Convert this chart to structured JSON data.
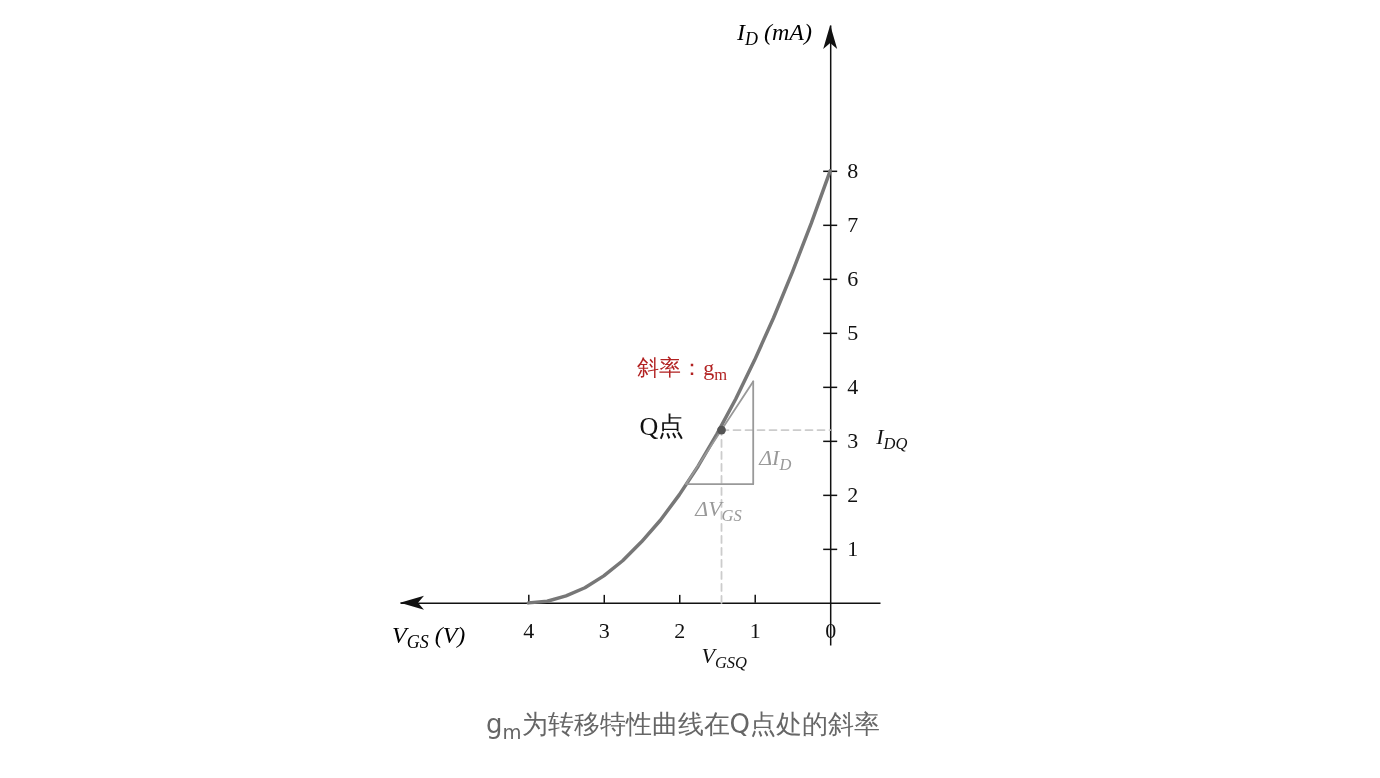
{
  "chart_data": {
    "type": "line",
    "xlabel": "V$_{GS}$ (V)",
    "ylabel": "I$_{D}$ (mA)",
    "xlim": [
      5.7,
      -0.66
    ],
    "ylim": [
      -0.78,
      10.7
    ],
    "xticks": [
      4,
      3,
      2,
      1,
      {
        "value": 0,
        "label": "0"
      }
    ],
    "yticks": [
      1,
      2,
      3,
      4,
      5,
      6,
      7,
      8
    ],
    "grid": false,
    "series": [
      {
        "color": "#777777",
        "x": [
          4,
          3.75,
          3.5,
          3.25,
          3,
          2.75,
          2.5,
          2.25,
          2,
          1.75,
          1.5,
          1.25,
          1,
          0.75,
          0.5,
          0.25,
          0
        ],
        "values": [
          0,
          0.03,
          0.13,
          0.28,
          0.5,
          0.78,
          1.13,
          1.53,
          2,
          2.53,
          3.13,
          3.78,
          4.5,
          5.28,
          6.13,
          7.03,
          8
        ]
      },
      {
        "type": "line",
        "color": "#cccccc",
        "line_style": "dashed",
        "x": [
          1.44,
          1.44
        ],
        "values": [
          0,
          3.2
        ]
      },
      {
        "type": "line",
        "color": "#cccccc",
        "line_style": "dashed",
        "x": [
          1.44,
          0
        ],
        "values": [
          3.2,
          3.2
        ]
      },
      {
        "type": "line",
        "color": "#999999",
        "x": [
          1.91,
          1.02
        ],
        "values": [
          2.2,
          4.1
        ]
      },
      {
        "type": "line",
        "color": "#999999",
        "x": [
          1.91,
          1.02
        ],
        "values": [
          2.2,
          2.2
        ]
      },
      {
        "type": "line",
        "color": "#999999",
        "x": [
          1.02,
          1.02
        ],
        "values": [
          2.2,
          4.1
        ]
      },
      {
        "type": "scatter",
        "color": "#555555",
        "marker": "circle",
        "x": [
          1.44
        ],
        "values": [
          3.2
        ]
      }
    ],
    "annotations": [
      {
        "text": "Q点",
        "x": 1.44,
        "y": 3.2
      },
      {
        "text": "斜率：g$_{m}$",
        "x": 1.02,
        "y": 4.1
      },
      {
        "text": "I$_{DQ}$",
        "x": 0,
        "y": 3.2
      },
      {
        "text": "V$_{GSQ}$",
        "x": 1.44,
        "y": 0
      },
      {
        "text": "ΔI$_{D}$",
        "x": 1.02,
        "y": 3.15
      },
      {
        "text": "ΔV$_{GS}$",
        "x": 1.47,
        "y": 2.2
      },
      "g$_{m}$为转移特性曲线在Q点处的斜率"
    ]
  }
}
